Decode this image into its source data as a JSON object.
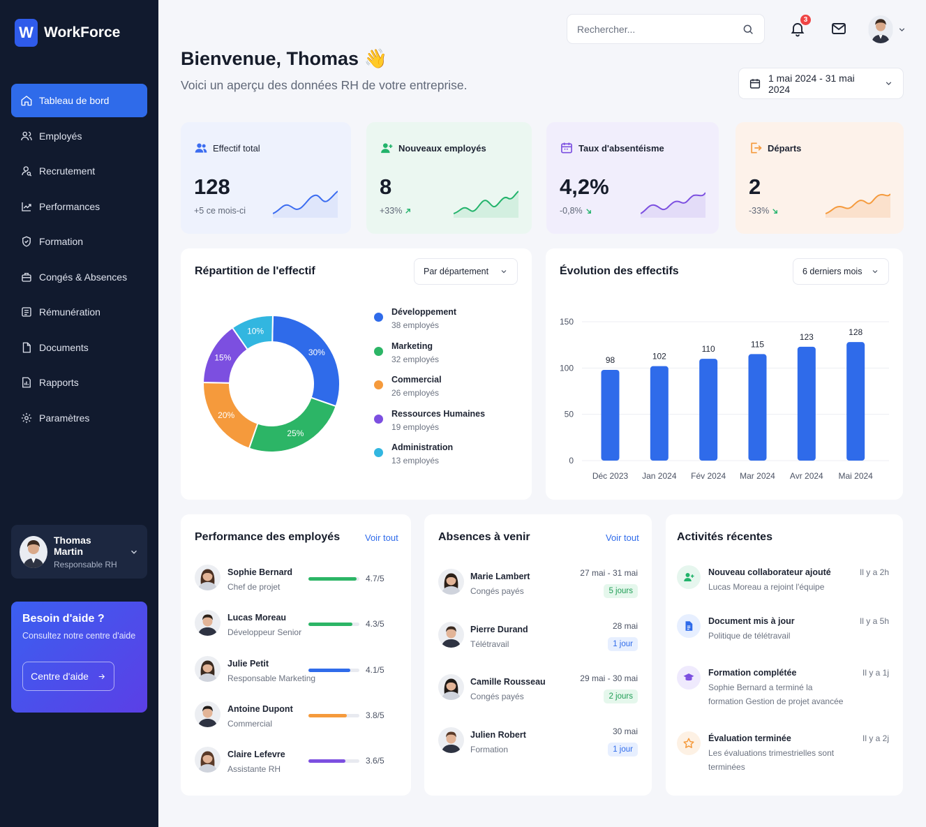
{
  "brand": {
    "logo_letter": "W",
    "name": "WorkForce"
  },
  "sidebar": {
    "items": [
      {
        "label": "Tableau de bord",
        "icon": "home-icon"
      },
      {
        "label": "Employés",
        "icon": "users-icon"
      },
      {
        "label": "Recrutement",
        "icon": "user-search-icon"
      },
      {
        "label": "Performances",
        "icon": "chart-icon"
      },
      {
        "label": "Formation",
        "icon": "shield-check-icon"
      },
      {
        "label": "Congés & Absences",
        "icon": "suitcase-icon"
      },
      {
        "label": "Rémunération",
        "icon": "wallet-icon"
      },
      {
        "label": "Documents",
        "icon": "file-icon"
      },
      {
        "label": "Rapports",
        "icon": "report-icon"
      },
      {
        "label": "Paramètres",
        "icon": "gear-icon"
      }
    ],
    "user": {
      "name": "Thomas Martin",
      "role": "Responsable RH"
    },
    "help": {
      "title": "Besoin d'aide ?",
      "text": "Consultez notre centre d'aide",
      "button": "Centre d'aide"
    }
  },
  "header": {
    "search_placeholder": "Rechercher...",
    "notifications_count": "3",
    "title": "Bienvenue, Thomas 👋",
    "subtitle": "Voici un aperçu des données RH de votre entreprise.",
    "date_range": "1 mai 2024 - 31 mai 2024"
  },
  "stats": [
    {
      "label": "Effectif total",
      "value": "128",
      "delta": "+5 ce mois-ci",
      "color": "#3b6cf0",
      "bg": "#eef2fd",
      "fill": "#dfe6fb"
    },
    {
      "label": "Nouveaux employés",
      "value": "8",
      "delta": "+33%",
      "color": "#22b36b",
      "bg": "#ebf7f1",
      "fill": "#d3efe0"
    },
    {
      "label": "Taux d'absentéisme",
      "value": "4,2%",
      "delta": "-0,8%",
      "color": "#7c4fe0",
      "bg": "#f1eefc",
      "fill": "#e3dcf8"
    },
    {
      "label": "Départs",
      "value": "2",
      "delta": "-33%",
      "color": "#f59a3c",
      "bg": "#fdf2ea",
      "fill": "#fbe1cc"
    }
  ],
  "distribution": {
    "title": "Répartition de l'effectif",
    "filter": "Par département",
    "chart_data": {
      "type": "pie",
      "categories": [
        "Développement",
        "Marketing",
        "Commercial",
        "Ressources Humaines",
        "Administration"
      ],
      "values": [
        30,
        25,
        20,
        15,
        10
      ],
      "labels": [
        "30%",
        "25%",
        "20%",
        "15%",
        "10%"
      ],
      "colors": [
        "#2f6bea",
        "#2cb566",
        "#f59a3c",
        "#7c4fe0",
        "#32b6e0"
      ]
    },
    "legend": [
      {
        "name": "Développement",
        "count": "38 employés"
      },
      {
        "name": "Marketing",
        "count": "32 employés"
      },
      {
        "name": "Commercial",
        "count": "26 employés"
      },
      {
        "name": "Ressources Humaines",
        "count": "19 employés"
      },
      {
        "name": "Administration",
        "count": "13 employés"
      }
    ]
  },
  "evolution": {
    "title": "Évolution des effectifs",
    "filter": "6 derniers mois",
    "chart_data": {
      "type": "bar",
      "categories": [
        "Déc 2023",
        "Jan 2024",
        "Fév 2024",
        "Mar 2024",
        "Avr 2024",
        "Mai 2024"
      ],
      "values": [
        98,
        102,
        110,
        115,
        123,
        128
      ],
      "ylim": [
        0,
        150
      ],
      "yticks": [
        0,
        50,
        100,
        150
      ],
      "color": "#2f6bea",
      "grid": true
    }
  },
  "performance": {
    "title": "Performance des employés",
    "see_all": "Voir tout",
    "rows": [
      {
        "name": "Sophie Bernard",
        "role": "Chef de projet",
        "score": "4.7/5",
        "value": 4.7,
        "color": "#2cb566"
      },
      {
        "name": "Lucas Moreau",
        "role": "Développeur Senior",
        "score": "4.3/5",
        "value": 4.3,
        "color": "#2cb566"
      },
      {
        "name": "Julie Petit",
        "role": "Responsable Marketing",
        "score": "4.1/5",
        "value": 4.1,
        "color": "#2f6bea"
      },
      {
        "name": "Antoine Dupont",
        "role": "Commercial",
        "score": "3.8/5",
        "value": 3.8,
        "color": "#f59a3c"
      },
      {
        "name": "Claire Lefevre",
        "role": "Assistante RH",
        "score": "3.6/5",
        "value": 3.6,
        "color": "#7c4fe0"
      }
    ]
  },
  "absences": {
    "title": "Absences à venir",
    "see_all": "Voir tout",
    "rows": [
      {
        "name": "Marie Lambert",
        "type": "Congés payés",
        "date": "27 mai - 31 mai",
        "duration": "5 jours",
        "style": "green"
      },
      {
        "name": "Pierre Durand",
        "type": "Télétravail",
        "date": "28 mai",
        "duration": "1 jour",
        "style": "blue"
      },
      {
        "name": "Camille Rousseau",
        "type": "Congés payés",
        "date": "29 mai - 30 mai",
        "duration": "2 jours",
        "style": "green"
      },
      {
        "name": "Julien Robert",
        "type": "Formation",
        "date": "30 mai",
        "duration": "1 jour",
        "style": "blue"
      }
    ]
  },
  "activities": {
    "title": "Activités récentes",
    "rows": [
      {
        "title": "Nouveau collaborateur ajouté",
        "desc": "Lucas Moreau a rejoint l'équipe",
        "time": "Il y a 2h",
        "icon": "user-plus-icon",
        "color": "#22b36b",
        "bg": "#e6f6ee"
      },
      {
        "title": "Document mis à jour",
        "desc": "Politique de télétravail",
        "time": "Il y a 5h",
        "icon": "document-icon",
        "color": "#2f6bea",
        "bg": "#e7efff"
      },
      {
        "title": "Formation complétée",
        "desc": "Sophie Bernard a terminé la formation Gestion de projet avancée",
        "time": "Il y a 1j",
        "icon": "graduation-cap-icon",
        "color": "#7c4fe0",
        "bg": "#efeafd"
      },
      {
        "title": "Évaluation terminée",
        "desc": "Les évaluations trimestrielles sont terminées",
        "time": "Il y a 2j",
        "icon": "star-icon",
        "color": "#f59a3c",
        "bg": "#fdf1e4"
      }
    ]
  }
}
